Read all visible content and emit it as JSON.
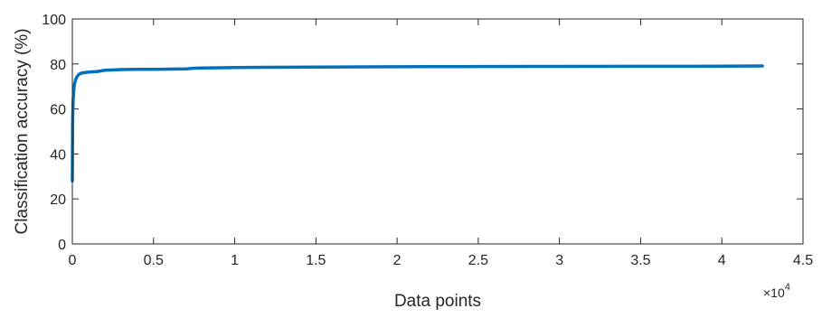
{
  "chart_data": {
    "type": "line",
    "xlabel": "Data points",
    "ylabel": "Classification accuracy (%)",
    "x_multiplier_label": "×10",
    "x_multiplier_exponent": "4",
    "xlim": [
      0,
      45000
    ],
    "ylim": [
      0,
      100
    ],
    "x_ticks": [
      0,
      5000,
      10000,
      15000,
      20000,
      25000,
      30000,
      35000,
      40000,
      45000
    ],
    "x_tick_labels": [
      "0",
      "0.5",
      "1",
      "1.5",
      "2",
      "2.5",
      "3",
      "3.5",
      "4",
      "4.5"
    ],
    "y_ticks": [
      0,
      20,
      40,
      60,
      80,
      100
    ],
    "y_tick_labels": [
      "0",
      "20",
      "40",
      "60",
      "80",
      "100"
    ],
    "grid": false,
    "line_color": "#0072BD",
    "series": [
      {
        "x": [
          0,
          20,
          50,
          100,
          150,
          200,
          300,
          400,
          500,
          700,
          1000,
          1500,
          2000,
          3000,
          4000,
          5000,
          6000,
          7000,
          7500,
          8000,
          10000,
          12000,
          15000,
          18000,
          20000,
          22000,
          25000,
          30000,
          35000,
          40000,
          42500
        ],
        "y": [
          28,
          55,
          64,
          69.5,
          71.5,
          73,
          74.5,
          75.3,
          75.8,
          76.1,
          76.4,
          76.6,
          77.2,
          77.5,
          77.6,
          77.6,
          77.7,
          77.8,
          78.1,
          78.2,
          78.4,
          78.5,
          78.6,
          78.7,
          78.75,
          78.8,
          78.85,
          78.9,
          78.95,
          79.0,
          79.1
        ]
      }
    ]
  }
}
